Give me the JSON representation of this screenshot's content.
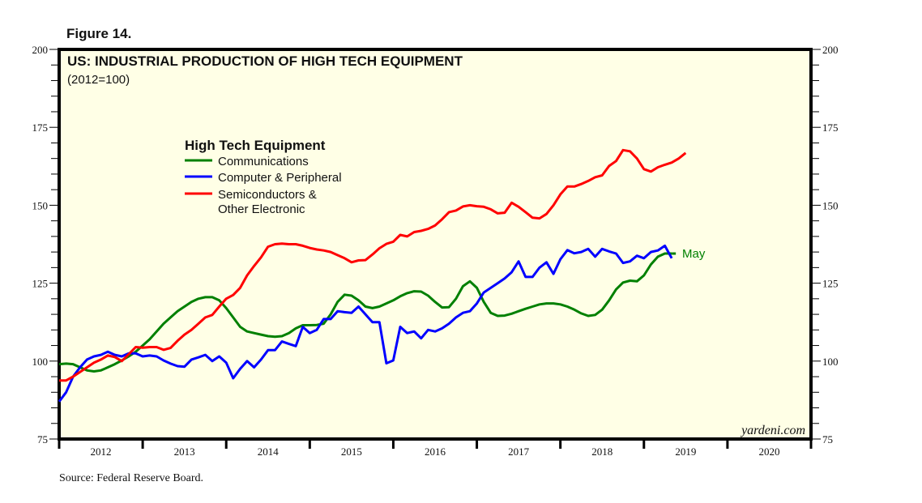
{
  "figure_label": "Figure 14.",
  "source": "Source: Federal Reserve Board.",
  "watermark": "yardeni.com",
  "chart_data": {
    "type": "line",
    "title": "US: INDUSTRIAL PRODUCTION OF HIGH TECH EQUIPMENT",
    "subtitle": "(2012=100)",
    "xlabel": "",
    "ylabel": "",
    "ylim": [
      75,
      200
    ],
    "yticks": [
      75,
      100,
      125,
      150,
      175,
      200
    ],
    "xlim": [
      2012,
      2021
    ],
    "xticks": [
      "2012",
      "2013",
      "2014",
      "2015",
      "2016",
      "2017",
      "2018",
      "2019",
      "2020"
    ],
    "grid": false,
    "legend": {
      "title": "High Tech Equipment",
      "placement": "upper-left"
    },
    "annotation": {
      "text": "May",
      "series": "Communications"
    },
    "frequency": "monthly",
    "start": "2012-01",
    "series": [
      {
        "name": "Communications",
        "color": "#008000",
        "values": [
          99,
          99.2,
          99,
          98,
          97,
          96.7,
          97,
          98,
          99,
          100.2,
          101.5,
          103,
          105,
          107,
          109.5,
          112,
          114,
          116,
          117.5,
          119,
          120,
          120.5,
          120.5,
          119.5,
          117,
          114,
          111,
          109.5,
          109,
          108.5,
          108,
          107.8,
          108,
          109,
          110.5,
          111.5,
          111.5,
          111.6,
          112,
          115,
          119,
          121.3,
          121,
          119.5,
          117.5,
          117,
          117.5,
          118.5,
          119.5,
          120.8,
          121.8,
          122.4,
          122.3,
          121,
          119,
          117.2,
          117.3,
          120,
          124,
          125.6,
          123.5,
          119,
          115.5,
          114.5,
          114.6,
          115.2,
          116,
          116.8,
          117.5,
          118.2,
          118.5,
          118.5,
          118.2,
          117.5,
          116.5,
          115.3,
          114.5,
          114.8,
          116.5,
          119.5,
          123,
          125.2,
          125.8,
          125.6,
          127.5,
          131,
          133.5,
          134.5,
          134.5
        ]
      },
      {
        "name": "Computer & Peripheral",
        "color": "#0000ff",
        "values": [
          87,
          90,
          95,
          98,
          100.5,
          101.5,
          102,
          103,
          102,
          101.5,
          102.5,
          102.5,
          101.5,
          101.8,
          101.5,
          100.2,
          99.2,
          98.4,
          98.2,
          100.5,
          101.2,
          102,
          100,
          101.5,
          99.5,
          94.5,
          97.5,
          100,
          98,
          100.5,
          103.5,
          103.5,
          106.3,
          105.5,
          104.8,
          111,
          109,
          110,
          113.5,
          113.5,
          116,
          115.7,
          115.5,
          117.5,
          115,
          112.5,
          112.5,
          99.3,
          100.2,
          111,
          109,
          109.5,
          107.3,
          110,
          109.5,
          110.5,
          112,
          114,
          115.5,
          116,
          118.5,
          122,
          123.5,
          125,
          126.5,
          128.5,
          132,
          127,
          127,
          130,
          131.7,
          128,
          132.7,
          135.6,
          134.6,
          135,
          136,
          133.5,
          136,
          135.2,
          134.5,
          131.5,
          132,
          133.8,
          133,
          135,
          135.5,
          137,
          133
        ]
      },
      {
        "name": "Semiconductors & Other Electronic",
        "color": "#ff0000",
        "values": [
          93.8,
          93.8,
          95,
          96.5,
          98,
          99.5,
          100.5,
          101.8,
          101.3,
          100,
          102.2,
          104.5,
          104.3,
          104.5,
          104.5,
          103.6,
          104.2,
          106.5,
          108.5,
          110,
          112,
          114,
          114.8,
          117.5,
          120,
          121.2,
          123.5,
          127.5,
          130.5,
          133.3,
          136.7,
          137.5,
          137.7,
          137.5,
          137.5,
          137,
          136.3,
          135.8,
          135.5,
          135,
          134,
          133,
          131.7,
          132.3,
          132.4,
          134.2,
          136.2,
          137.6,
          138.3,
          140.5,
          140,
          141.4,
          141.8,
          142.4,
          143.5,
          145.5,
          147.8,
          148.3,
          149.6,
          150,
          149.7,
          149.5,
          148.7,
          147.4,
          147.6,
          150.8,
          149.5,
          147.8,
          146,
          145.8,
          147.2,
          150,
          153.5,
          156,
          156,
          156.8,
          157.8,
          159,
          159.6,
          162.6,
          164.2,
          167.7,
          167.3,
          165,
          161.6,
          160.8,
          162.2,
          163,
          163.7,
          165,
          166.8
        ]
      }
    ]
  }
}
